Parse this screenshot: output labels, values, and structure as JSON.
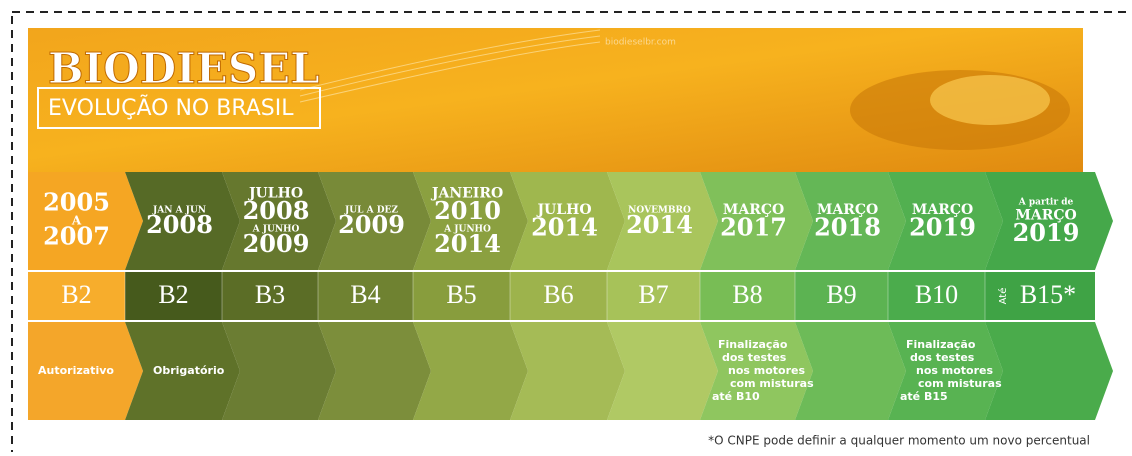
{
  "header": {
    "title": "BIODIESEL",
    "subtitle": "EVOLUÇÃO NO BRASIL",
    "watermark": "biodieselbr.com"
  },
  "columns": [
    {
      "period": [
        "2005",
        "A",
        "2007"
      ],
      "blend": "B2",
      "note": [
        "Autorizativo"
      ]
    },
    {
      "period": [
        "JAN A JUN",
        "2008"
      ],
      "blend": "B2",
      "note": [
        "Obrigatório"
      ]
    },
    {
      "period": [
        "JULHO",
        "2008",
        "A JUNHO",
        "2009"
      ],
      "blend": "B3"
    },
    {
      "period": [
        "JUL A DEZ",
        "2009"
      ],
      "blend": "B4"
    },
    {
      "period": [
        "JANEIRO",
        "2010",
        "A JUNHO",
        "2014"
      ],
      "blend": "B5"
    },
    {
      "period": [
        "JULHO",
        "2014"
      ],
      "blend": "B6"
    },
    {
      "period": [
        "NOVEMBRO",
        "2014"
      ],
      "blend": "B7"
    },
    {
      "period": [
        "MARÇO",
        "2017"
      ],
      "blend": "B8",
      "note": [
        "Finalização",
        "dos testes",
        "nos motores",
        "com misturas",
        "até B10"
      ]
    },
    {
      "period": [
        "MARÇO",
        "2018"
      ],
      "blend": "B9"
    },
    {
      "period": [
        "MARÇO",
        "2019"
      ],
      "blend": "B10",
      "note": [
        "Finalização",
        "dos testes",
        "nos motores",
        "com misturas",
        "até B15"
      ]
    },
    {
      "period": [
        "A partir de",
        "MARÇO",
        "2019"
      ],
      "blend_prefix": "Até",
      "blend": "B15*"
    }
  ],
  "footnote": "*O CNPE pode definir a qualquer momento um novo percentual"
}
